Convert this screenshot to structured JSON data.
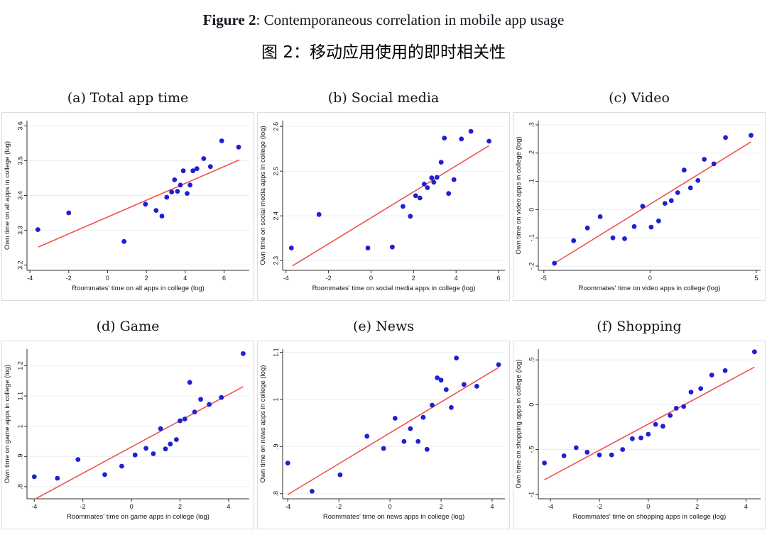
{
  "header": {
    "title_prefix": "Figure 2",
    "title_rest": ": Contemporaneous correlation in mobile app usage",
    "subtitle_cn": "图 2：移动应用使用的即时相关性"
  },
  "colors": {
    "dot": "#1f1fd3",
    "line": "#f0524f",
    "grid": "#eaeef2",
    "axis": "#30302e",
    "frame_border": "#d9dde1"
  },
  "chart_data": [
    {
      "type": "scatter",
      "title": "(a) Total app time",
      "xlabel": "Roommates' time on all apps in college (log)",
      "ylabel": "Own time on all apps in college (log)",
      "xlim": [
        -4.15,
        7.3
      ],
      "ylim": [
        3.185,
        3.615
      ],
      "xticks": [
        -4,
        -2,
        0,
        2,
        4,
        6
      ],
      "xtick_labels": [
        "-4",
        "-2",
        "0",
        "2",
        "4",
        "6"
      ],
      "yticks": [
        3.2,
        3.3,
        3.4,
        3.5,
        3.6
      ],
      "ytick_labels": [
        "3.2",
        "3.3",
        "3.4",
        "3.5",
        "3.6"
      ],
      "grid": "horizontal",
      "points": [
        [
          -3.59,
          3.302
        ],
        [
          -2.0,
          3.35
        ],
        [
          0.85,
          3.268
        ],
        [
          1.95,
          3.375
        ],
        [
          2.5,
          3.357
        ],
        [
          2.8,
          3.341
        ],
        [
          3.05,
          3.395
        ],
        [
          3.3,
          3.41
        ],
        [
          3.45,
          3.445
        ],
        [
          3.6,
          3.412
        ],
        [
          3.75,
          3.43
        ],
        [
          3.9,
          3.471
        ],
        [
          4.1,
          3.406
        ],
        [
          4.25,
          3.43
        ],
        [
          4.4,
          3.471
        ],
        [
          4.6,
          3.477
        ],
        [
          4.95,
          3.506
        ],
        [
          5.3,
          3.483
        ],
        [
          5.88,
          3.557
        ],
        [
          6.75,
          3.539
        ]
      ],
      "fit_line": [
        -3.56,
        3.252,
        6.79,
        3.502
      ]
    },
    {
      "type": "scatter",
      "title": "(b) Social media",
      "xlabel": "Roommates' time on social media apps in college (log)",
      "ylabel": "Own time on social media apps in college (log)",
      "xlim": [
        -4.16,
        6.3
      ],
      "ylim": [
        2.278,
        2.613
      ],
      "xticks": [
        -4,
        -2,
        0,
        2,
        4,
        6
      ],
      "xtick_labels": [
        "-4",
        "-2",
        "0",
        "2",
        "4",
        "6"
      ],
      "yticks": [
        2.3,
        2.4,
        2.5,
        2.6
      ],
      "ytick_labels": [
        "2.3",
        "2.4",
        "2.5",
        "2.6"
      ],
      "grid": "horizontal",
      "points": [
        [
          -3.75,
          2.328
        ],
        [
          -2.45,
          2.403
        ],
        [
          -0.15,
          2.328
        ],
        [
          1.0,
          2.33
        ],
        [
          1.5,
          2.421
        ],
        [
          1.85,
          2.399
        ],
        [
          2.1,
          2.445
        ],
        [
          2.3,
          2.44
        ],
        [
          2.5,
          2.471
        ],
        [
          2.65,
          2.463
        ],
        [
          2.85,
          2.485
        ],
        [
          2.95,
          2.475
        ],
        [
          3.1,
          2.486
        ],
        [
          3.3,
          2.52
        ],
        [
          3.45,
          2.574
        ],
        [
          3.65,
          2.45
        ],
        [
          3.9,
          2.481
        ],
        [
          4.25,
          2.572
        ],
        [
          4.7,
          2.589
        ],
        [
          5.55,
          2.567
        ]
      ],
      "fit_line": [
        -3.7,
        2.288,
        5.55,
        2.557
      ]
    },
    {
      "type": "scatter",
      "title": "(c) Video",
      "xlabel": "Roommates' time on video apps in college (log)",
      "ylabel": "Own time on video apps in college (log)",
      "xlim": [
        -5.26,
        5.2
      ],
      "ylim": [
        -0.215,
        0.315
      ],
      "xticks": [
        -5,
        0,
        5
      ],
      "xtick_labels": [
        "-5",
        "0",
        "5"
      ],
      "yticks": [
        -0.2,
        -0.1,
        0,
        0.1,
        0.2,
        0.3
      ],
      "ytick_labels": [
        "-.2",
        "-.1",
        "0",
        ".1",
        ".2",
        ".3"
      ],
      "grid": "horizontal",
      "points": [
        [
          -4.5,
          -0.19
        ],
        [
          -3.6,
          -0.11
        ],
        [
          -2.95,
          -0.065
        ],
        [
          -2.35,
          -0.025
        ],
        [
          -1.75,
          -0.1
        ],
        [
          -1.2,
          -0.103
        ],
        [
          -0.75,
          -0.06
        ],
        [
          -0.35,
          0.012
        ],
        [
          0.05,
          -0.062
        ],
        [
          0.4,
          -0.04
        ],
        [
          0.7,
          0.022
        ],
        [
          1.0,
          0.032
        ],
        [
          1.3,
          0.06
        ],
        [
          1.6,
          0.14
        ],
        [
          1.9,
          0.077
        ],
        [
          2.25,
          0.103
        ],
        [
          2.55,
          0.178
        ],
        [
          3.0,
          0.162
        ],
        [
          3.55,
          0.255
        ],
        [
          4.75,
          0.263
        ]
      ],
      "fit_line": [
        -4.5,
        -0.19,
        4.75,
        0.24
      ]
    },
    {
      "type": "scatter",
      "title": "(d) Game",
      "xlabel": "Roommates' time on game apps in college (log)",
      "ylabel": "Own time on game apps in college (log)",
      "xlim": [
        -4.3,
        4.85
      ],
      "ylim": [
        0.76,
        1.255
      ],
      "xticks": [
        -4,
        -2,
        0,
        2,
        4
      ],
      "xtick_labels": [
        "-4",
        "-2",
        "0",
        "2",
        "4"
      ],
      "yticks": [
        0.8,
        0.9,
        1,
        1.1,
        1.2
      ],
      "ytick_labels": [
        ".8",
        ".9",
        "1",
        "1.1",
        "1.2"
      ],
      "grid": "horizontal",
      "points": [
        [
          -4.0,
          0.833
        ],
        [
          -3.05,
          0.828
        ],
        [
          -2.2,
          0.89
        ],
        [
          -1.1,
          0.84
        ],
        [
          -0.4,
          0.868
        ],
        [
          0.15,
          0.905
        ],
        [
          0.6,
          0.927
        ],
        [
          0.9,
          0.909
        ],
        [
          1.2,
          0.992
        ],
        [
          1.4,
          0.925
        ],
        [
          1.6,
          0.941
        ],
        [
          1.85,
          0.956
        ],
        [
          2.0,
          1.018
        ],
        [
          2.2,
          1.024
        ],
        [
          2.4,
          1.145
        ],
        [
          2.6,
          1.047
        ],
        [
          2.85,
          1.089
        ],
        [
          3.2,
          1.072
        ],
        [
          3.7,
          1.095
        ],
        [
          4.6,
          1.24
        ]
      ],
      "fit_line": [
        -4.0,
        0.758,
        4.6,
        1.131
      ]
    },
    {
      "type": "scatter",
      "title": "(e) News",
      "xlabel": "Roommates' time on news apps in college (log)",
      "ylabel": "Own time on news apps in college (log)",
      "xlim": [
        -4.2,
        4.5
      ],
      "ylim": [
        0.789,
        1.107
      ],
      "xticks": [
        -4,
        -2,
        0,
        2,
        4
      ],
      "xtick_labels": [
        "-4",
        "-2",
        "0",
        "2",
        "4"
      ],
      "yticks": [
        0.8,
        0.9,
        1,
        1.1
      ],
      "ytick_labels": [
        ".8",
        ".9",
        "1",
        "1.1"
      ],
      "grid": "horizontal",
      "points": [
        [
          -4.0,
          0.865
        ],
        [
          -3.05,
          0.805
        ],
        [
          -1.95,
          0.84
        ],
        [
          -0.9,
          0.922
        ],
        [
          -0.25,
          0.896
        ],
        [
          0.2,
          0.96
        ],
        [
          0.55,
          0.911
        ],
        [
          0.8,
          0.938
        ],
        [
          1.1,
          0.911
        ],
        [
          1.3,
          0.962
        ],
        [
          1.45,
          0.894
        ],
        [
          1.65,
          0.988
        ],
        [
          1.85,
          1.046
        ],
        [
          2.0,
          1.041
        ],
        [
          2.2,
          1.021
        ],
        [
          2.4,
          0.983
        ],
        [
          2.6,
          1.088
        ],
        [
          2.9,
          1.032
        ],
        [
          3.4,
          1.028
        ],
        [
          4.25,
          1.074
        ]
      ],
      "fit_line": [
        -4.0,
        0.798,
        4.25,
        1.068
      ]
    },
    {
      "type": "scatter",
      "title": "(f) Shopping",
      "xlabel": "Roommates' time on shopping apps in college (log)",
      "ylabel": "Own time on shopping apps in college (log)",
      "xlim": [
        -4.5,
        4.6
      ],
      "ylim": [
        -1.05,
        0.62
      ],
      "xticks": [
        -4,
        -2,
        0,
        2,
        4
      ],
      "xtick_labels": [
        "-4",
        "-2",
        "0",
        "2",
        "4"
      ],
      "yticks": [
        -1,
        -0.5,
        0,
        0.5
      ],
      "ytick_labels": [
        "-1",
        "-.5",
        "0",
        ".5"
      ],
      "grid": "horizontal",
      "points": [
        [
          -4.25,
          -0.65
        ],
        [
          -3.45,
          -0.57
        ],
        [
          -2.95,
          -0.48
        ],
        [
          -2.5,
          -0.53
        ],
        [
          -2.0,
          -0.56
        ],
        [
          -1.5,
          -0.56
        ],
        [
          -1.05,
          -0.5
        ],
        [
          -0.65,
          -0.38
        ],
        [
          -0.3,
          -0.37
        ],
        [
          0.0,
          -0.33
        ],
        [
          0.3,
          -0.22
        ],
        [
          0.6,
          -0.24
        ],
        [
          0.9,
          -0.12
        ],
        [
          1.15,
          -0.04
        ],
        [
          1.45,
          -0.02
        ],
        [
          1.75,
          0.14
        ],
        [
          2.15,
          0.18
        ],
        [
          2.6,
          0.33
        ],
        [
          3.15,
          0.38
        ],
        [
          4.35,
          0.59
        ]
      ],
      "fit_line": [
        -4.25,
        -0.838,
        4.35,
        0.42
      ]
    }
  ]
}
